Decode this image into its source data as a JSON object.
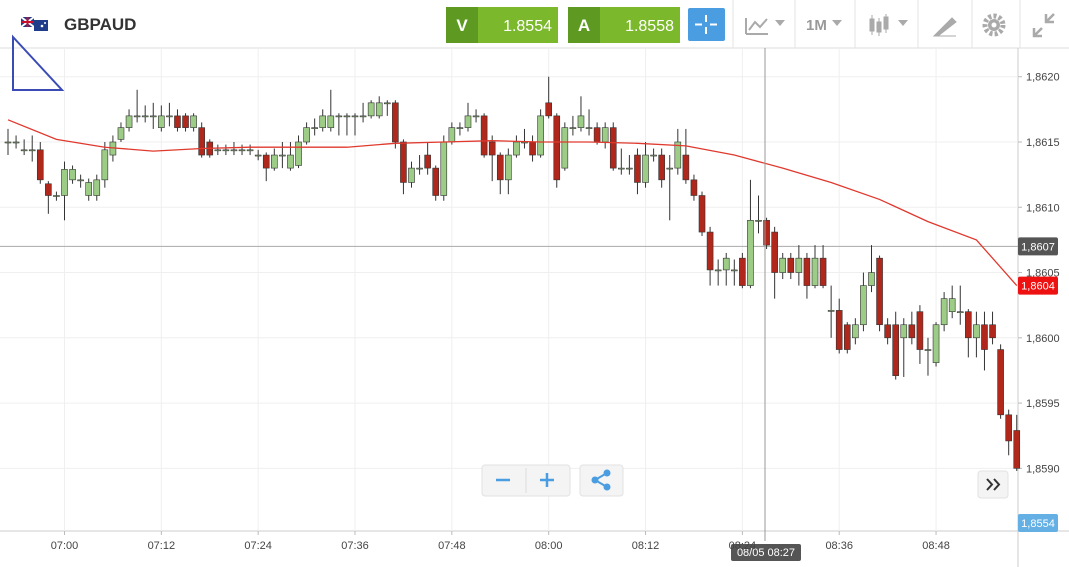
{
  "toolbar": {
    "symbol": "GBPAUD",
    "bid_letter": "V",
    "bid": "1.8554",
    "ask_letter": "A",
    "ask": "1.8558",
    "timeframe": "1M"
  },
  "chart_data": {
    "type": "candlestick",
    "x": [
      "06:53",
      "06:54",
      "06:55",
      "06:56",
      "06:57",
      "06:58",
      "06:59",
      "07:00",
      "07:01",
      "07:02",
      "07:03",
      "07:04",
      "07:05",
      "07:06",
      "07:07",
      "07:08",
      "07:09",
      "07:10",
      "07:11",
      "07:12",
      "07:13",
      "07:14",
      "07:15",
      "07:16",
      "07:17",
      "07:18",
      "07:19",
      "07:20",
      "07:21",
      "07:22",
      "07:23",
      "07:24",
      "07:25",
      "07:26",
      "07:27",
      "07:28",
      "07:29",
      "07:30",
      "07:31",
      "07:32",
      "07:33",
      "07:34",
      "07:35",
      "07:36",
      "07:37",
      "07:38",
      "07:39",
      "07:40",
      "07:41",
      "07:42",
      "07:43",
      "07:44",
      "07:45",
      "07:46",
      "07:47",
      "07:48",
      "07:49",
      "07:50",
      "07:51",
      "07:52",
      "07:53",
      "07:54",
      "07:55",
      "07:56",
      "07:57",
      "07:58",
      "07:59",
      "08:00",
      "08:01",
      "08:02",
      "08:03",
      "08:04",
      "08:05",
      "08:06",
      "08:07",
      "08:08",
      "08:09",
      "08:10",
      "08:11",
      "08:12",
      "08:13",
      "08:14",
      "08:15",
      "08:16",
      "08:17",
      "08:18",
      "08:19",
      "08:20",
      "08:21",
      "08:22",
      "08:23",
      "08:24",
      "08:25",
      "08:26",
      "08:27",
      "08:28",
      "08:29",
      "08:30",
      "08:31",
      "08:32",
      "08:33",
      "08:34",
      "08:35",
      "08:36",
      "08:37",
      "08:38",
      "08:39",
      "08:40",
      "08:41",
      "08:42",
      "08:43",
      "08:44",
      "08:45",
      "08:46",
      "08:47",
      "08:48",
      "08:49",
      "08:50",
      "08:51",
      "08:52",
      "08:53",
      "08:54",
      "08:55",
      "08:56",
      "08:57",
      "08:58"
    ],
    "open": [
      1.8615,
      1.8615,
      1.86144,
      1.86144,
      1.86144,
      1.86118,
      1.86109,
      1.86109,
      1.86121,
      1.86121,
      1.86109,
      1.86109,
      1.86121,
      1.8614,
      1.86152,
      1.86161,
      1.8617,
      1.8617,
      1.8617,
      1.86161,
      1.8617,
      1.8617,
      1.8617,
      1.86161,
      1.86161,
      1.8615,
      1.86144,
      1.86144,
      1.86144,
      1.86144,
      1.86144,
      1.8614,
      1.8614,
      1.8613,
      1.8614,
      1.8613,
      1.86132,
      1.8615,
      1.86161,
      1.86161,
      1.86161,
      1.8617,
      1.8617,
      1.8617,
      1.8617,
      1.8617,
      1.8617,
      1.8618,
      1.8618,
      1.8615,
      1.86119,
      1.8613,
      1.8614,
      1.8613,
      1.86109,
      1.8615,
      1.86161,
      1.86161,
      1.8617,
      1.8617,
      1.8615,
      1.8614,
      1.86121,
      1.8614,
      1.8615,
      1.8615,
      1.8614,
      1.8618,
      1.8617,
      1.8613,
      1.86161,
      1.86161,
      1.86161,
      1.86161,
      1.8615,
      1.86161,
      1.8613,
      1.8613,
      1.8614,
      1.86119,
      1.8614,
      1.8614,
      1.8613,
      1.8613,
      1.8614,
      1.86121,
      1.86109,
      1.86081,
      1.86052,
      1.86052,
      1.86052,
      1.86061,
      1.8604,
      1.8609,
      1.8609,
      1.86081,
      1.8605,
      1.86061,
      1.8605,
      1.86061,
      1.8604,
      1.86061,
      1.86021,
      1.86021,
      1.8601,
      1.86,
      1.8601,
      1.8604,
      1.86061,
      1.8601,
      1.8601,
      1.86,
      1.8601,
      1.8602,
      1.85991,
      1.85981,
      1.8601,
      1.8602,
      1.8602,
      1.8602,
      1.86,
      1.8601,
      1.8601,
      1.85991,
      1.85941,
      1.85929
    ],
    "high": [
      1.8616,
      1.86155,
      1.86152,
      1.86155,
      1.8615,
      1.8612,
      1.86112,
      1.86135,
      1.86132,
      1.86125,
      1.86122,
      1.86125,
      1.8615,
      1.86155,
      1.86165,
      1.86175,
      1.8619,
      1.86178,
      1.8618,
      1.86178,
      1.8618,
      1.86175,
      1.86172,
      1.86172,
      1.86165,
      1.86152,
      1.86148,
      1.86148,
      1.8615,
      1.86148,
      1.86148,
      1.86144,
      1.86142,
      1.86145,
      1.8615,
      1.8615,
      1.86155,
      1.86165,
      1.86168,
      1.86175,
      1.8619,
      1.86172,
      1.86172,
      1.86172,
      1.8618,
      1.86182,
      1.86185,
      1.86182,
      1.86182,
      1.86152,
      1.86135,
      1.8614,
      1.8615,
      1.86132,
      1.86155,
      1.86165,
      1.86165,
      1.8618,
      1.86175,
      1.86172,
      1.86155,
      1.86142,
      1.86145,
      1.86155,
      1.8616,
      1.86155,
      1.86175,
      1.862,
      1.86172,
      1.86165,
      1.8617,
      1.86185,
      1.86175,
      1.86165,
      1.86165,
      1.86165,
      1.86145,
      1.8614,
      1.86145,
      1.8615,
      1.86145,
      1.86145,
      1.8614,
      1.8616,
      1.8616,
      1.86125,
      1.86112,
      1.86085,
      1.8606,
      1.86065,
      1.8606,
      1.86065,
      1.86121,
      1.86109,
      1.86092,
      1.86085,
      1.86065,
      1.86065,
      1.86071,
      1.86065,
      1.86071,
      1.86071,
      1.8604,
      1.8603,
      1.86012,
      1.86015,
      1.8605,
      1.86071,
      1.86063,
      1.86015,
      1.8602,
      1.86015,
      1.8602,
      1.86025,
      1.86,
      1.86012,
      1.86035,
      1.8604,
      1.8604,
      1.86022,
      1.8602,
      1.8602,
      1.8602,
      1.85995,
      1.85945,
      1.85941
    ],
    "low": [
      1.8614,
      1.86145,
      1.8614,
      1.86135,
      1.86118,
      1.86095,
      1.86105,
      1.8609,
      1.86118,
      1.86115,
      1.86105,
      1.86105,
      1.86115,
      1.86135,
      1.8615,
      1.86158,
      1.86165,
      1.86165,
      1.8616,
      1.86158,
      1.86162,
      1.86158,
      1.86158,
      1.86158,
      1.86138,
      1.86138,
      1.8614,
      1.8614,
      1.8614,
      1.8614,
      1.8614,
      1.86136,
      1.8612,
      1.86128,
      1.8613,
      1.86128,
      1.8613,
      1.86148,
      1.86155,
      1.86158,
      1.86158,
      1.86155,
      1.86155,
      1.86155,
      1.86165,
      1.86168,
      1.86168,
      1.8617,
      1.86145,
      1.8611,
      1.86115,
      1.86125,
      1.86125,
      1.86105,
      1.86105,
      1.86148,
      1.86155,
      1.86158,
      1.86165,
      1.86138,
      1.8612,
      1.8611,
      1.8611,
      1.86138,
      1.86145,
      1.86135,
      1.86138,
      1.86168,
      1.86115,
      1.86128,
      1.86155,
      1.86158,
      1.86155,
      1.86148,
      1.86145,
      1.86128,
      1.86125,
      1.86125,
      1.8611,
      1.86115,
      1.86135,
      1.86115,
      1.8609,
      1.86125,
      1.86118,
      1.86105,
      1.86078,
      1.8604,
      1.8604,
      1.8604,
      1.8604,
      1.86038,
      1.86038,
      1.8608,
      1.86068,
      1.8603,
      1.86045,
      1.86045,
      1.8604,
      1.8603,
      1.86038,
      1.86038,
      1.86,
      1.85988,
      1.85988,
      1.85995,
      1.86005,
      1.86035,
      1.86005,
      1.85995,
      1.85968,
      1.8597,
      1.85995,
      1.8598,
      1.85971,
      1.85978,
      1.86005,
      1.86015,
      1.8601,
      1.85985,
      1.85985,
      1.85975,
      1.85995,
      1.85938,
      1.8591,
      1.85898
    ],
    "close": [
      1.8615,
      1.8615,
      1.86144,
      1.86144,
      1.86121,
      1.86109,
      1.86109,
      1.86129,
      1.86129,
      1.86121,
      1.86119,
      1.86121,
      1.86144,
      1.8615,
      1.86161,
      1.8617,
      1.8617,
      1.8617,
      1.8617,
      1.8617,
      1.8617,
      1.86161,
      1.86161,
      1.8617,
      1.8614,
      1.8614,
      1.86144,
      1.86144,
      1.86144,
      1.86144,
      1.86144,
      1.8614,
      1.8613,
      1.8614,
      1.8614,
      1.8614,
      1.8615,
      1.86161,
      1.86161,
      1.8617,
      1.8617,
      1.8617,
      1.8617,
      1.8617,
      1.8617,
      1.8618,
      1.8618,
      1.8618,
      1.8615,
      1.86119,
      1.8613,
      1.8613,
      1.8613,
      1.86109,
      1.8615,
      1.86161,
      1.86161,
      1.8617,
      1.8617,
      1.8614,
      1.8614,
      1.86121,
      1.8614,
      1.8615,
      1.8615,
      1.8614,
      1.8617,
      1.8617,
      1.86121,
      1.86161,
      1.86161,
      1.8617,
      1.86161,
      1.8615,
      1.86161,
      1.8613,
      1.8613,
      1.8613,
      1.86119,
      1.8614,
      1.8614,
      1.86121,
      1.8613,
      1.8615,
      1.86121,
      1.86109,
      1.86081,
      1.86052,
      1.86052,
      1.86061,
      1.86052,
      1.8604,
      1.8609,
      1.8609,
      1.86071,
      1.8605,
      1.86061,
      1.8605,
      1.86061,
      1.8604,
      1.86061,
      1.8604,
      1.86021,
      1.85991,
      1.85991,
      1.8601,
      1.8604,
      1.8605,
      1.8601,
      1.86,
      1.85971,
      1.8601,
      1.86,
      1.85991,
      1.85991,
      1.8601,
      1.8603,
      1.8603,
      1.8602,
      1.86,
      1.8601,
      1.85991,
      1.86,
      1.85941,
      1.85921,
      1.859
    ],
    "up_color": "#9ccc86",
    "down_color": "#b0271b",
    "moving_average": {
      "color": "#e0392e",
      "x": [
        "06:53",
        "06:59",
        "07:05",
        "07:11",
        "07:17",
        "07:23",
        "07:29",
        "07:35",
        "07:41",
        "07:47",
        "07:53",
        "07:59",
        "08:05",
        "08:11",
        "08:17",
        "08:23",
        "08:29",
        "08:35",
        "08:41",
        "08:47",
        "08:53",
        "08:58"
      ],
      "values": [
        1.86167,
        1.86152,
        1.86146,
        1.86143,
        1.86145,
        1.86146,
        1.86146,
        1.86146,
        1.86149,
        1.8615,
        1.86151,
        1.8615,
        1.8615,
        1.86149,
        1.86147,
        1.8614,
        1.8613,
        1.86119,
        1.86106,
        1.86089,
        1.86075,
        1.8604
      ]
    },
    "ylim": [
      1.85852,
      1.86222
    ],
    "yticks": [
      {
        "value": 1.859,
        "label": "1,8590"
      },
      {
        "value": 1.8595,
        "label": "1,8595"
      },
      {
        "value": 1.86,
        "label": "1,8600"
      },
      {
        "value": 1.8605,
        "label": "1,8605"
      },
      {
        "value": 1.861,
        "label": "1,8610"
      },
      {
        "value": 1.8615,
        "label": "1,8615"
      },
      {
        "value": 1.862,
        "label": "1,8620"
      }
    ],
    "grid": true,
    "price_lines": [
      {
        "value": 1.8607,
        "label": "1,8607",
        "color": "#555555"
      },
      {
        "value": 1.8604,
        "label": "1,8604",
        "color": "#ee1111"
      }
    ],
    "bid_badge": "1,8554",
    "crosshair_label": "08/05 08:27"
  }
}
